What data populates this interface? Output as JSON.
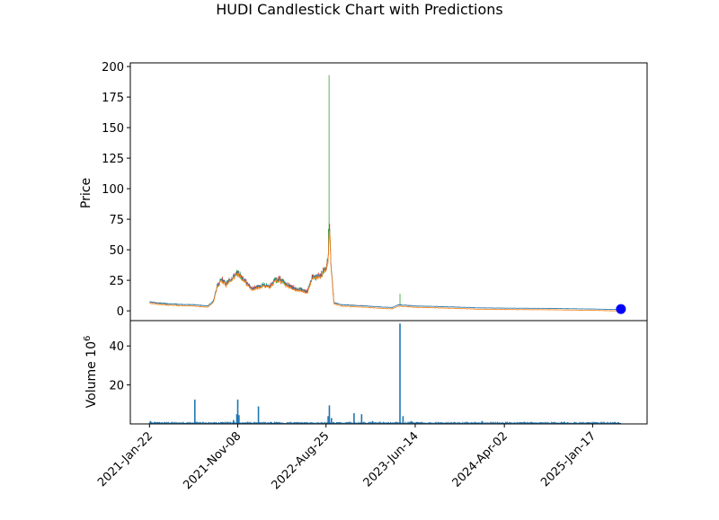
{
  "chart_data": {
    "type": "candlestick",
    "title": "HUDI Candlestick Chart with Predictions",
    "price_panel": {
      "ylabel": "Price",
      "ylim": [
        -8,
        203
      ],
      "yticks": [
        0,
        25,
        50,
        75,
        100,
        125,
        150,
        175,
        200
      ],
      "grid": false,
      "up_color": "#2ca02c",
      "down_color": "#d62728",
      "close_line_color": "#1f77b4",
      "prediction_line_color": "#ff7f0e",
      "prediction_marker_color": "#0000ff",
      "price_points": [
        [
          "2021-01-22",
          7.5
        ],
        [
          "2021-02-15",
          6.5
        ],
        [
          "2021-03-15",
          6.0
        ],
        [
          "2021-04-15",
          5.5
        ],
        [
          "2021-05-15",
          5.2
        ],
        [
          "2021-06-15",
          5.0
        ],
        [
          "2021-07-15",
          4.5
        ],
        [
          "2021-08-01",
          4.0
        ],
        [
          "2021-08-20",
          8.0
        ],
        [
          "2021-09-01",
          20.0
        ],
        [
          "2021-09-15",
          26.0
        ],
        [
          "2021-10-01",
          22.0
        ],
        [
          "2021-10-20",
          27.0
        ],
        [
          "2021-11-08",
          31.0
        ],
        [
          "2021-11-25",
          27.0
        ],
        [
          "2021-12-10",
          22.0
        ],
        [
          "2021-12-25",
          18.0
        ],
        [
          "2022-01-15",
          20.0
        ],
        [
          "2022-02-01",
          21.0
        ],
        [
          "2022-02-20",
          20.0
        ],
        [
          "2022-03-10",
          25.0
        ],
        [
          "2022-03-25",
          26.0
        ],
        [
          "2022-04-15",
          22.0
        ],
        [
          "2022-05-01",
          20.0
        ],
        [
          "2022-05-20",
          18.0
        ],
        [
          "2022-06-10",
          17.0
        ],
        [
          "2022-06-25",
          16.0
        ],
        [
          "2022-07-10",
          27.0
        ],
        [
          "2022-07-25",
          28.0
        ],
        [
          "2022-08-10",
          30.0
        ],
        [
          "2022-08-25",
          35.0
        ],
        [
          "2022-09-01",
          42.0
        ],
        [
          "2022-09-05",
          72.0
        ],
        [
          "2022-09-10",
          40.0
        ],
        [
          "2022-09-20",
          7.0
        ],
        [
          "2022-10-15",
          5.0
        ],
        [
          "2022-12-01",
          4.5
        ],
        [
          "2023-01-15",
          3.8
        ],
        [
          "2023-03-01",
          3.0
        ],
        [
          "2023-04-01",
          2.8
        ],
        [
          "2023-04-20",
          5.0
        ],
        [
          "2023-06-14",
          4.0
        ],
        [
          "2023-09-01",
          3.5
        ],
        [
          "2024-01-01",
          2.5
        ],
        [
          "2024-04-02",
          2.2
        ],
        [
          "2024-09-01",
          2.0
        ],
        [
          "2025-01-17",
          1.5
        ],
        [
          "2025-04-20",
          1.0
        ]
      ],
      "spikes": [
        {
          "x": "2022-09-04",
          "high": 193
        },
        {
          "x": "2022-09-02",
          "high": 67
        },
        {
          "x": "2023-04-25",
          "high": 14
        }
      ],
      "prediction_point": {
        "x": "2025-04-20",
        "y": 1.5
      }
    },
    "volume_panel": {
      "ylabel": "Volume  10",
      "ylabel_exp": "6",
      "ylim": [
        0,
        53
      ],
      "yticks": [
        20,
        40
      ],
      "bar_color": "#1f77b4",
      "spikes": [
        {
          "x": "2021-01-25",
          "v": 1.5
        },
        {
          "x": "2021-06-20",
          "v": 12.5
        },
        {
          "x": "2021-10-25",
          "v": 2.0
        },
        {
          "x": "2021-11-05",
          "v": 5.0
        },
        {
          "x": "2021-11-08",
          "v": 12.5
        },
        {
          "x": "2021-11-12",
          "v": 4.5
        },
        {
          "x": "2022-01-15",
          "v": 9.0
        },
        {
          "x": "2022-09-01",
          "v": 4.0
        },
        {
          "x": "2022-09-05",
          "v": 9.5
        },
        {
          "x": "2022-09-12",
          "v": 3.0
        },
        {
          "x": "2022-11-25",
          "v": 5.5
        },
        {
          "x": "2022-12-20",
          "v": 5.0
        },
        {
          "x": "2023-01-25",
          "v": 1.5
        },
        {
          "x": "2023-04-25",
          "v": 51.5
        },
        {
          "x": "2023-05-05",
          "v": 4.0
        },
        {
          "x": "2023-06-01",
          "v": 1.5
        },
        {
          "x": "2024-01-20",
          "v": 1.5
        },
        {
          "x": "2024-10-15",
          "v": 1.0
        }
      ],
      "baseline": 0.8
    },
    "x_axis": {
      "type": "date",
      "xlim": [
        "2020-11-20",
        "2025-07-15"
      ],
      "ticks": [
        "2021-01-22",
        "2021-11-08",
        "2022-08-25",
        "2023-06-14",
        "2024-04-02",
        "2025-01-17"
      ],
      "tick_labels": [
        "2021-Jan-22",
        "2021-Nov-08",
        "2022-Aug-25",
        "2023-Jun-14",
        "2024-Apr-02",
        "2025-Jan-17"
      ]
    }
  }
}
